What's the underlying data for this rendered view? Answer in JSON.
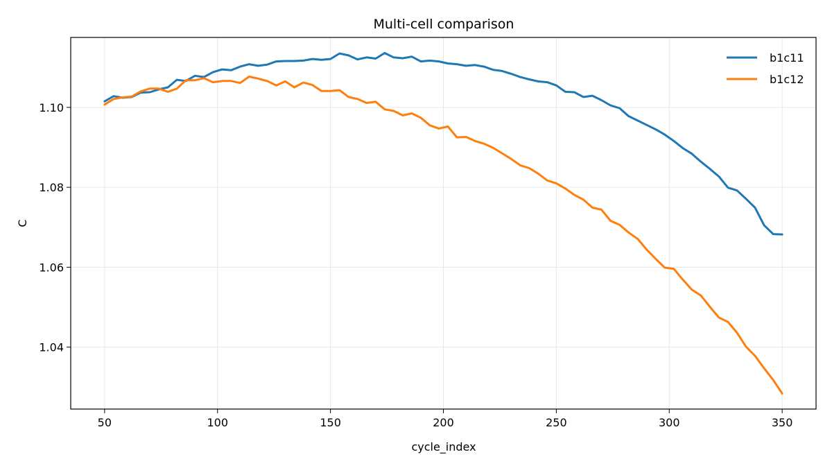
{
  "chart_data": {
    "type": "line",
    "title": "Multi-cell comparison",
    "xlabel": "cycle_index",
    "ylabel": "C",
    "xlim": [
      35,
      365
    ],
    "ylim": [
      1.0245,
      1.1175
    ],
    "xticks": [
      50,
      100,
      150,
      200,
      250,
      300,
      350
    ],
    "yticks": [
      1.04,
      1.06,
      1.08,
      1.1
    ],
    "ytick_labels": [
      "1.04",
      "1.06",
      "1.08",
      "1.10"
    ],
    "grid": true,
    "legend_position": "top-right",
    "series": [
      {
        "name": "b1c11",
        "color": "#1f77b4",
        "x": [
          50,
          54,
          58,
          62,
          66,
          70,
          74,
          78,
          82,
          86,
          90,
          94,
          98,
          102,
          106,
          110,
          114,
          118,
          122,
          126,
          130,
          134,
          138,
          142,
          146,
          150,
          154,
          158,
          162,
          166,
          170,
          174,
          178,
          182,
          186,
          190,
          194,
          198,
          202,
          206,
          210,
          214,
          218,
          222,
          226,
          230,
          234,
          238,
          242,
          246,
          250,
          254,
          258,
          262,
          266,
          270,
          274,
          278,
          282,
          286,
          290,
          294,
          298,
          302,
          306,
          310,
          314,
          318,
          322,
          326,
          330,
          334,
          338,
          342,
          346,
          350
        ],
        "y": [
          1.1015,
          1.1028,
          1.1024,
          1.1026,
          1.1037,
          1.1038,
          1.1045,
          1.105,
          1.1069,
          1.1066,
          1.1079,
          1.1076,
          1.1088,
          1.1095,
          1.1093,
          1.1102,
          1.1108,
          1.1104,
          1.1107,
          1.1115,
          1.1116,
          1.1116,
          1.1117,
          1.1121,
          1.1119,
          1.1121,
          1.1135,
          1.113,
          1.112,
          1.1125,
          1.1122,
          1.1136,
          1.1125,
          1.1123,
          1.1127,
          1.1115,
          1.1117,
          1.1115,
          1.111,
          1.1108,
          1.1104,
          1.1106,
          1.1102,
          1.1094,
          1.1091,
          1.1084,
          1.1076,
          1.107,
          1.1065,
          1.1063,
          1.1055,
          1.1039,
          1.1038,
          1.1026,
          1.1029,
          1.1018,
          1.1005,
          1.0998,
          1.0978,
          1.0967,
          1.0956,
          1.0945,
          1.0932,
          1.0916,
          1.0898,
          1.0884,
          1.0864,
          1.0846,
          1.0827,
          1.0799,
          1.0792,
          1.0771,
          1.0749,
          1.0705,
          1.0683,
          1.0682
        ]
      },
      {
        "name": "b1c12",
        "color": "#ff7f0e",
        "x": [
          50,
          54,
          58,
          62,
          66,
          70,
          74,
          78,
          82,
          86,
          90,
          94,
          98,
          102,
          106,
          110,
          114,
          118,
          122,
          126,
          130,
          134,
          138,
          142,
          146,
          150,
          154,
          158,
          162,
          166,
          170,
          174,
          178,
          182,
          186,
          190,
          194,
          198,
          202,
          206,
          210,
          214,
          218,
          222,
          226,
          230,
          234,
          238,
          242,
          246,
          250,
          254,
          258,
          262,
          266,
          270,
          274,
          278,
          282,
          286,
          290,
          294,
          298,
          302,
          306,
          310,
          314,
          318,
          322,
          326,
          330,
          334,
          338,
          342,
          346,
          350
        ],
        "y": [
          1.1007,
          1.1021,
          1.1025,
          1.1027,
          1.104,
          1.1047,
          1.1047,
          1.1039,
          1.1047,
          1.1068,
          1.1068,
          1.1073,
          1.1063,
          1.1066,
          1.1066,
          1.1061,
          1.1077,
          1.1072,
          1.1066,
          1.1055,
          1.1065,
          1.105,
          1.1062,
          1.1056,
          1.1041,
          1.1041,
          1.1043,
          1.1026,
          1.1021,
          1.1011,
          1.1014,
          1.0995,
          1.0991,
          1.098,
          1.0985,
          1.0974,
          1.0955,
          1.0947,
          1.0952,
          1.0925,
          1.0926,
          1.0916,
          1.0909,
          1.0899,
          1.0885,
          1.0871,
          1.0855,
          1.0848,
          1.0834,
          1.0817,
          1.081,
          1.0797,
          1.0781,
          1.0769,
          1.0749,
          1.0744,
          1.0716,
          1.0706,
          1.0687,
          1.0671,
          1.0644,
          1.0621,
          1.0599,
          1.0596,
          1.0569,
          1.0544,
          1.0529,
          1.0501,
          1.0474,
          1.0463,
          1.0436,
          1.0401,
          1.0378,
          1.0347,
          1.0318,
          1.0284
        ]
      }
    ]
  }
}
